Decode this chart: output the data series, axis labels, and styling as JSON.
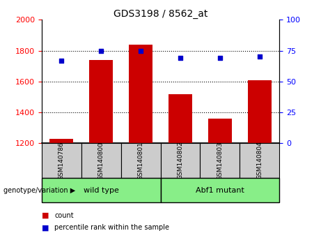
{
  "title": "GDS3198 / 8562_at",
  "samples": [
    "GSM140786",
    "GSM140800",
    "GSM140801",
    "GSM140802",
    "GSM140803",
    "GSM140804"
  ],
  "counts": [
    1230,
    1740,
    1840,
    1520,
    1360,
    1610
  ],
  "percentiles": [
    67,
    75,
    75,
    69,
    69,
    70
  ],
  "ylim_left": [
    1200,
    2000
  ],
  "ylim_right": [
    0,
    100
  ],
  "yticks_left": [
    1200,
    1400,
    1600,
    1800,
    2000
  ],
  "yticks_right": [
    0,
    25,
    50,
    75,
    100
  ],
  "bar_color": "#cc0000",
  "dot_color": "#0000cc",
  "group1_label": "wild type",
  "group1_indices": [
    0,
    1,
    2
  ],
  "group2_label": "Abf1 mutant",
  "group2_indices": [
    3,
    4,
    5
  ],
  "group_bg_color": "#88ee88",
  "sample_bg_color": "#cccccc",
  "legend_count_color": "#cc0000",
  "legend_dot_color": "#0000cc",
  "grid_lines": [
    1400,
    1600,
    1800
  ],
  "genotype_label": "genotype/variation"
}
